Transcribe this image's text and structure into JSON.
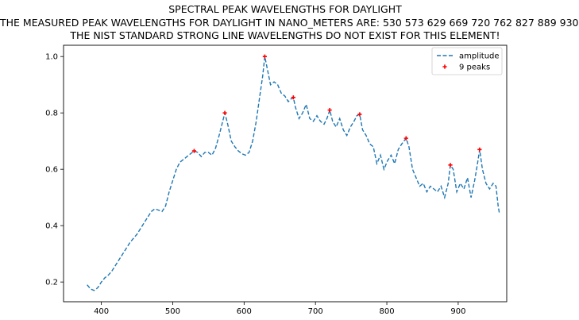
{
  "chart_data": {
    "type": "line",
    "title": "SPECTRAL PEAK WAVELENGTHS FOR DAYLIGHT",
    "subtitle": "THE MEASURED PEAK WAVELENGTHS FOR DAYLIGHT IN NANO_METERS ARE: 530 573 629 669 720 762 827 889 930",
    "subtitle2": "THE NIST STANDARD STRONG LINE WAVELENGTHS DO NOT EXIST FOR THIS ELEMENT!",
    "xlabel": "",
    "ylabel": "",
    "xlim": [
      347,
      968
    ],
    "ylim": [
      0.13,
      1.04
    ],
    "xticks": [
      400,
      500,
      600,
      700,
      800,
      900
    ],
    "yticks": [
      0.2,
      0.4,
      0.6,
      0.8,
      1.0
    ],
    "xtick_labels": [
      "400",
      "500",
      "600",
      "700",
      "800",
      "900"
    ],
    "ytick_labels": [
      "0.2",
      "0.4",
      "0.6",
      "0.8",
      "1.0"
    ],
    "grid": false,
    "legend_position": "top-right",
    "series": [
      {
        "name": "amplitude",
        "style": "dashed",
        "color": "#1f77b4",
        "x": [
          380,
          385,
          390,
          395,
          400,
          405,
          410,
          415,
          420,
          425,
          430,
          435,
          440,
          445,
          450,
          455,
          460,
          465,
          470,
          475,
          480,
          485,
          490,
          495,
          500,
          505,
          510,
          515,
          520,
          525,
          530,
          535,
          540,
          545,
          550,
          555,
          560,
          565,
          570,
          573,
          577,
          582,
          587,
          592,
          597,
          602,
          607,
          612,
          617,
          622,
          626,
          629,
          633,
          637,
          642,
          647,
          652,
          657,
          662,
          666,
          669,
          672,
          677,
          682,
          687,
          692,
          697,
          702,
          707,
          712,
          716,
          720,
          724,
          729,
          734,
          739,
          744,
          749,
          754,
          758,
          762,
          766,
          771,
          776,
          781,
          786,
          791,
          796,
          801,
          806,
          811,
          816,
          821,
          827,
          831,
          836,
          841,
          846,
          851,
          856,
          861,
          866,
          871,
          876,
          881,
          886,
          889,
          893,
          898,
          903,
          908,
          913,
          918,
          923,
          927,
          930,
          934,
          939,
          944,
          949,
          953,
          956,
          958
        ],
        "values": [
          0.19,
          0.175,
          0.17,
          0.18,
          0.2,
          0.215,
          0.225,
          0.24,
          0.26,
          0.28,
          0.3,
          0.32,
          0.34,
          0.355,
          0.37,
          0.39,
          0.41,
          0.43,
          0.45,
          0.46,
          0.455,
          0.45,
          0.47,
          0.52,
          0.56,
          0.6,
          0.625,
          0.635,
          0.645,
          0.655,
          0.665,
          0.66,
          0.645,
          0.66,
          0.66,
          0.65,
          0.675,
          0.72,
          0.77,
          0.8,
          0.76,
          0.7,
          0.68,
          0.665,
          0.655,
          0.65,
          0.66,
          0.7,
          0.77,
          0.86,
          0.93,
          1.0,
          0.95,
          0.9,
          0.91,
          0.9,
          0.87,
          0.86,
          0.84,
          0.85,
          0.855,
          0.82,
          0.78,
          0.8,
          0.83,
          0.78,
          0.77,
          0.79,
          0.77,
          0.76,
          0.78,
          0.81,
          0.77,
          0.75,
          0.78,
          0.74,
          0.72,
          0.75,
          0.77,
          0.79,
          0.795,
          0.74,
          0.72,
          0.69,
          0.68,
          0.62,
          0.65,
          0.6,
          0.63,
          0.65,
          0.62,
          0.67,
          0.69,
          0.71,
          0.68,
          0.6,
          0.57,
          0.54,
          0.55,
          0.52,
          0.54,
          0.53,
          0.52,
          0.54,
          0.5,
          0.55,
          0.615,
          0.6,
          0.52,
          0.55,
          0.53,
          0.57,
          0.5,
          0.56,
          0.62,
          0.67,
          0.6,
          0.55,
          0.53,
          0.55,
          0.54,
          0.47,
          0.44
        ]
      },
      {
        "name": "9 peaks",
        "style": "markers",
        "color": "#ff0000",
        "x": [
          530,
          573,
          629,
          669,
          720,
          762,
          827,
          889,
          930
        ],
        "values": [
          0.665,
          0.8,
          1.0,
          0.855,
          0.81,
          0.795,
          0.71,
          0.615,
          0.67
        ]
      }
    ]
  }
}
